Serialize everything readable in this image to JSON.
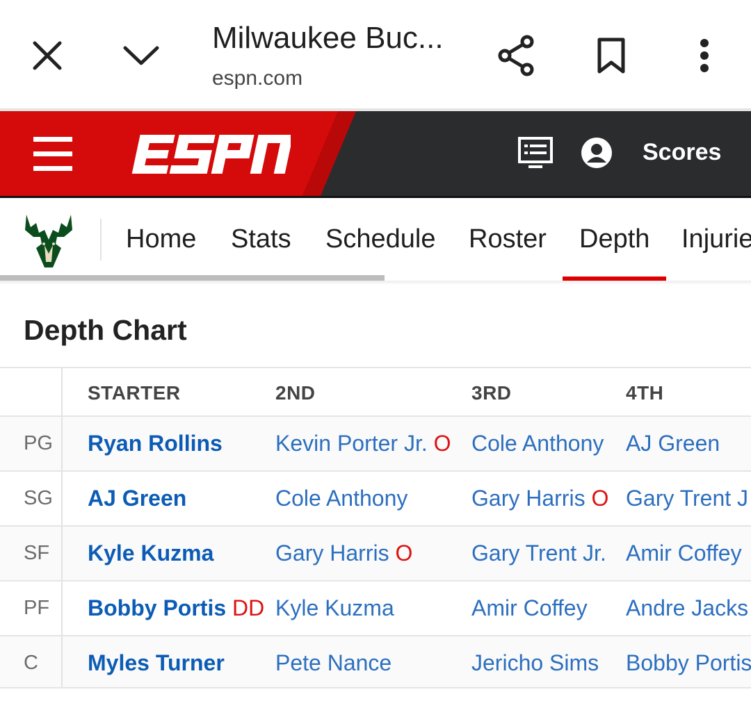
{
  "browser": {
    "title": "Milwaukee Buc...",
    "url": "espn.com"
  },
  "header": {
    "scores_label": "Scores",
    "brand_color": "#d50a0a",
    "bg_color": "#2b2c2d"
  },
  "nav": {
    "items": [
      "Home",
      "Stats",
      "Schedule",
      "Roster",
      "Depth",
      "Injurie"
    ],
    "active": "Depth"
  },
  "section_title": "Depth Chart",
  "table": {
    "headers": [
      "STARTER",
      "2ND",
      "3RD",
      "4TH"
    ],
    "rows": [
      {
        "pos": "PG",
        "starter": {
          "name": "Ryan Rollins",
          "tag": ""
        },
        "second": {
          "name": "Kevin Porter Jr.",
          "tag": "O"
        },
        "third": {
          "name": "Cole Anthony",
          "tag": ""
        },
        "fourth": {
          "name": "AJ Green",
          "tag": ""
        }
      },
      {
        "pos": "SG",
        "starter": {
          "name": "AJ Green",
          "tag": ""
        },
        "second": {
          "name": "Cole Anthony",
          "tag": ""
        },
        "third": {
          "name": "Gary Harris",
          "tag": "O"
        },
        "fourth": {
          "name": "Gary Trent J",
          "tag": ""
        }
      },
      {
        "pos": "SF",
        "starter": {
          "name": "Kyle Kuzma",
          "tag": ""
        },
        "second": {
          "name": "Gary Harris",
          "tag": "O"
        },
        "third": {
          "name": "Gary Trent Jr.",
          "tag": ""
        },
        "fourth": {
          "name": "Amir Coffey",
          "tag": ""
        }
      },
      {
        "pos": "PF",
        "starter": {
          "name": "Bobby Portis",
          "tag": "DD"
        },
        "second": {
          "name": "Kyle Kuzma",
          "tag": ""
        },
        "third": {
          "name": "Amir Coffey",
          "tag": ""
        },
        "fourth": {
          "name": "Andre Jacks",
          "tag": ""
        }
      },
      {
        "pos": "C",
        "starter": {
          "name": "Myles Turner",
          "tag": ""
        },
        "second": {
          "name": "Pete Nance",
          "tag": ""
        },
        "third": {
          "name": "Jericho Sims",
          "tag": ""
        },
        "fourth": {
          "name": "Bobby Portis",
          "tag": ""
        }
      }
    ]
  }
}
